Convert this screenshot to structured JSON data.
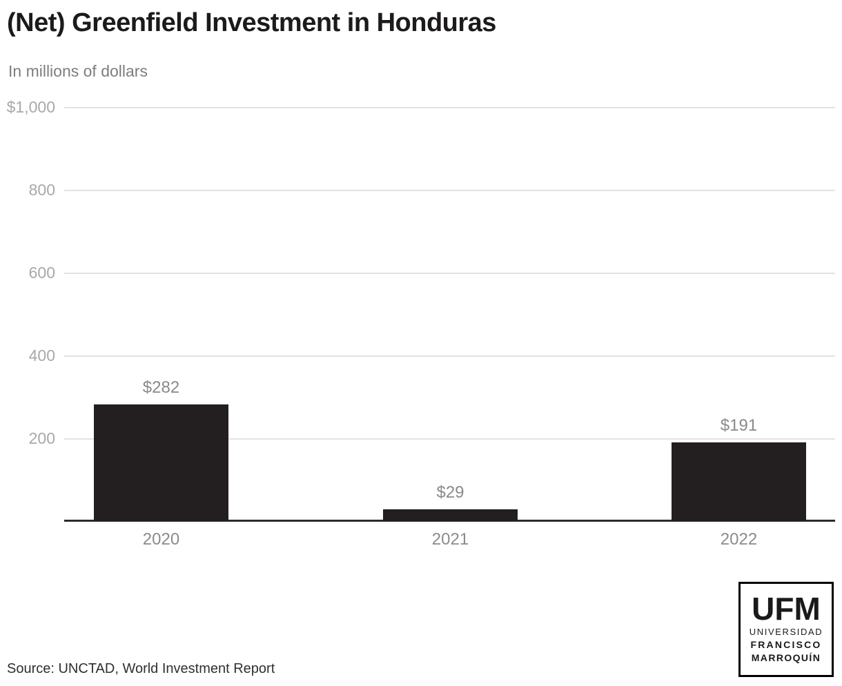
{
  "header": {
    "title": "(Net) Greenfield Investment in Honduras",
    "subtitle": "In millions of dollars"
  },
  "footer": {
    "source": "Source: UNCTAD, World Investment Report"
  },
  "logo": {
    "acronym": "UFM",
    "line1": "UNIVERSIDAD",
    "line2": "FRANCISCO",
    "line3": "MARROQUÍN"
  },
  "colors": {
    "bar": "#231f20",
    "axis": "#2b2b2b",
    "gridline": "#e2e2e2",
    "tick_label": "#a8a8a8",
    "value_label": "#8a8a8a"
  },
  "chart_data": {
    "type": "bar",
    "title": "(Net) Greenfield Investment in Honduras",
    "subtitle": "In millions of dollars",
    "categories": [
      "2020",
      "2021",
      "2022"
    ],
    "values": [
      282,
      29,
      191
    ],
    "value_labels": [
      "$282",
      "$29",
      "$191"
    ],
    "xlabel": "",
    "ylabel": "In millions of dollars",
    "ylim": [
      0,
      1000
    ],
    "yticks": [
      200,
      400,
      600,
      800,
      1000
    ],
    "ytick_labels": [
      "200",
      "400",
      "600",
      "800",
      "$1,000"
    ],
    "grid": true,
    "legend": false,
    "bar_color": "#231f20",
    "source": "Source: UNCTAD, World Investment Report"
  }
}
